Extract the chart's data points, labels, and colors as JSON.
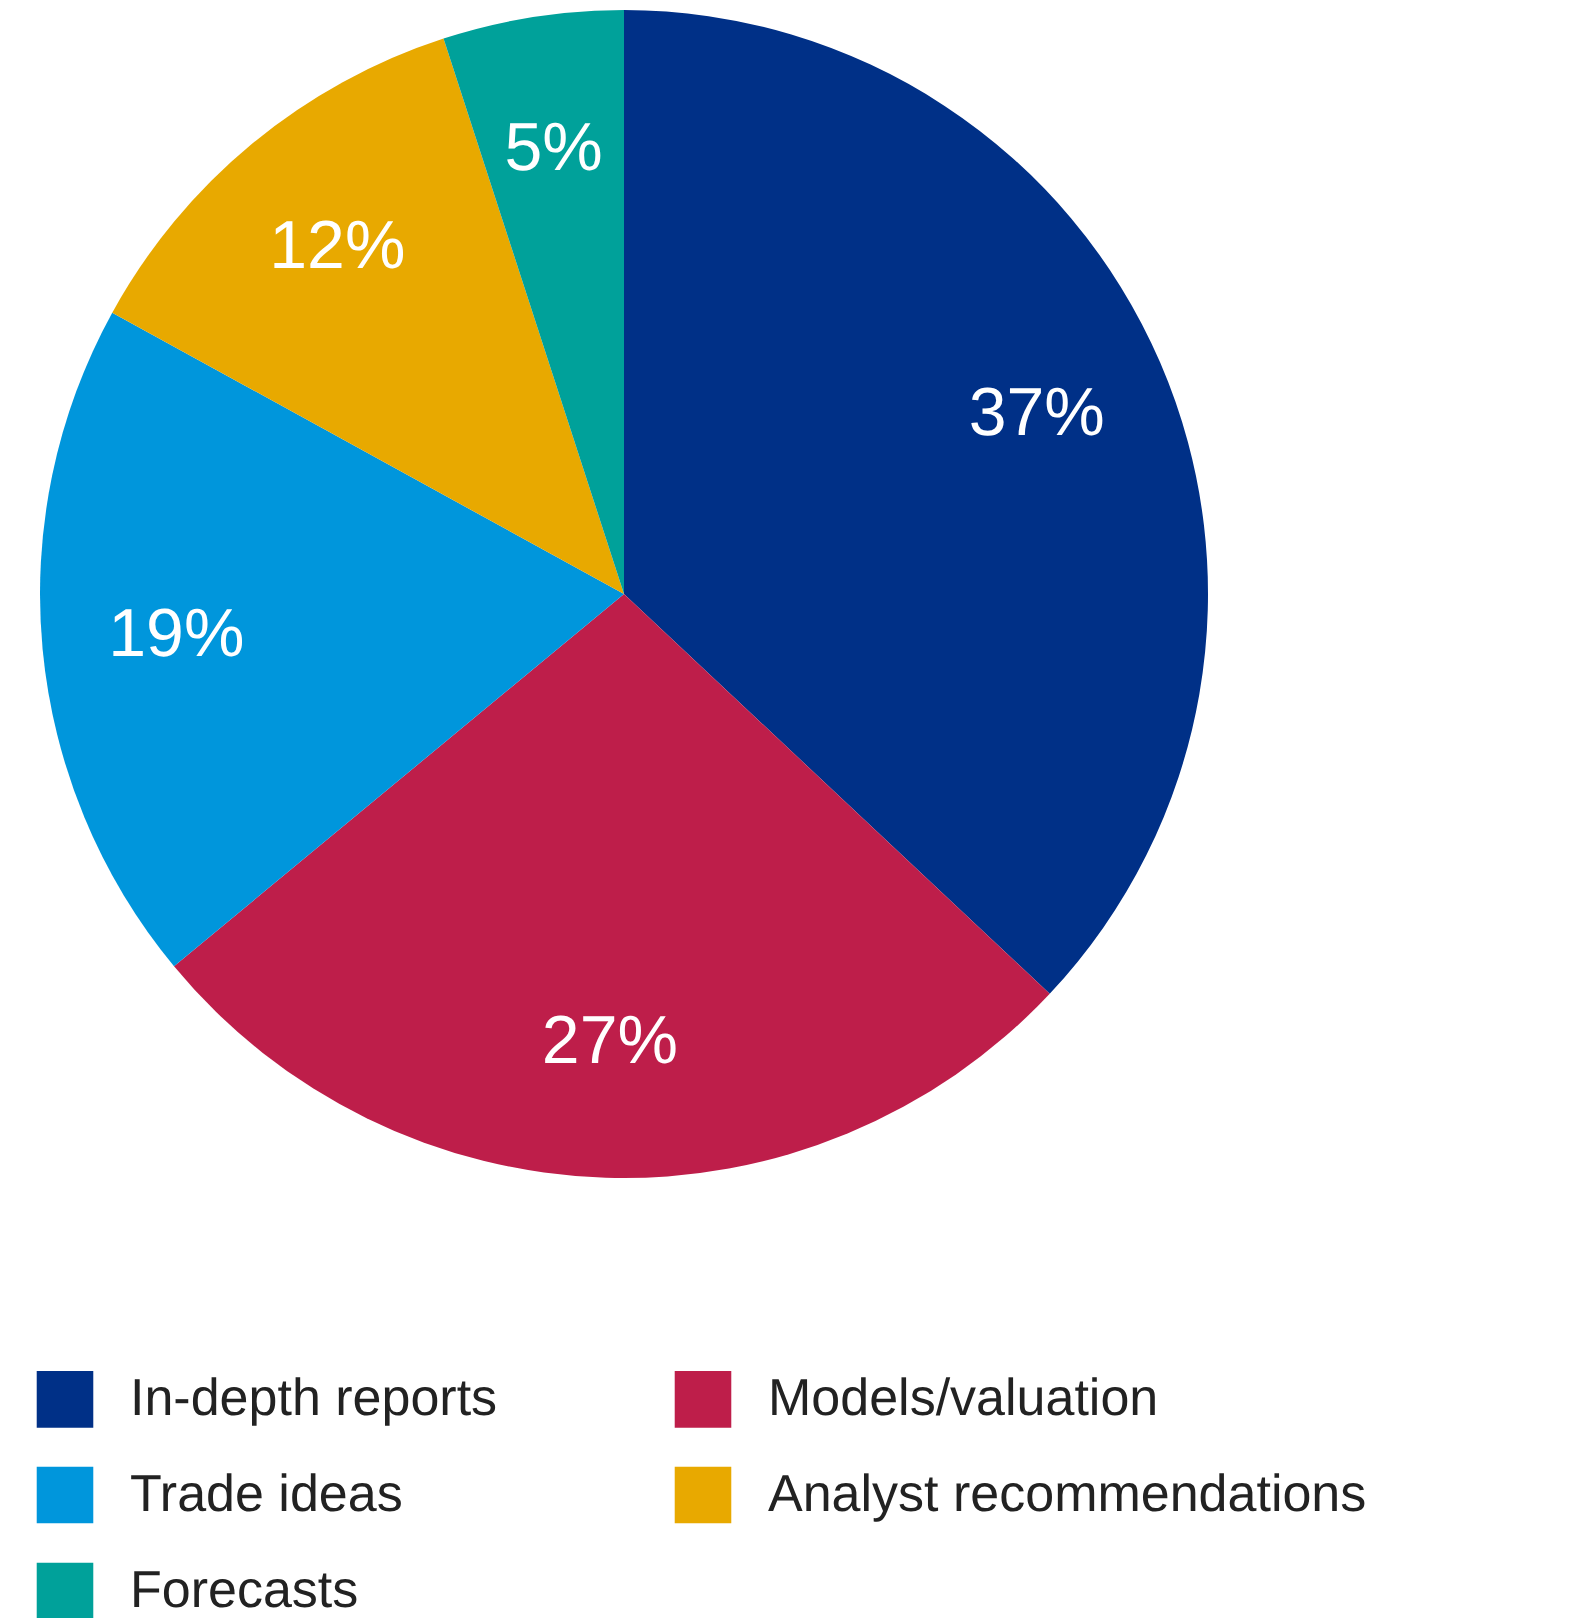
{
  "chart_data": {
    "type": "pie",
    "categories": [
      "In-depth reports",
      "Models/valuation",
      "Trade ideas",
      "Analyst recommendations",
      "Forecasts"
    ],
    "values": [
      37,
      27,
      19,
      12,
      5
    ],
    "value_labels": [
      "37%",
      "27%",
      "19%",
      "12%",
      "5%"
    ],
    "colors": [
      "#003087",
      "#be1e4a",
      "#0096dc",
      "#e8a900",
      "#00a19a"
    ],
    "legend": "bottom"
  }
}
